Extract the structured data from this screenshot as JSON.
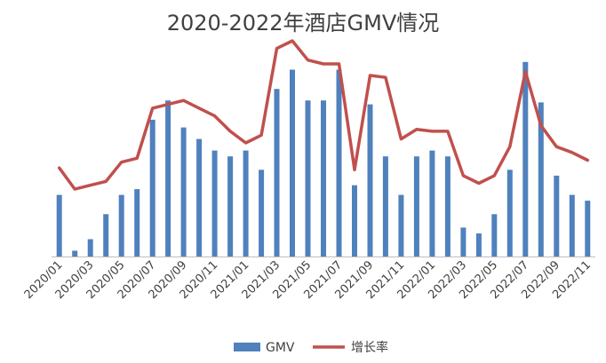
{
  "chart_data": {
    "type": "bar+line",
    "title": "2020-2022年酒店GMV情况",
    "xlabel": "",
    "ylabel": "",
    "categories": [
      "2020/01",
      "2020/02",
      "2020/03",
      "2020/04",
      "2020/05",
      "2020/06",
      "2020/07",
      "2020/08",
      "2020/09",
      "2020/10",
      "2020/11",
      "2020/12",
      "2021/01",
      "2021/02",
      "2021/03",
      "2021/04",
      "2021/05",
      "2021/06",
      "2021/07",
      "2021/08",
      "2021/09",
      "2021/10",
      "2021/11",
      "2021/12",
      "2022/01",
      "2022/02",
      "2022/03",
      "2022/04",
      "2022/05",
      "2022/06",
      "2022/07",
      "2022/08",
      "2022/09",
      "2022/10",
      "2022/11"
    ],
    "tick_labels": [
      "2020/01",
      "2020/03",
      "2020/05",
      "2020/07",
      "2020/09",
      "2020/11",
      "2021/01",
      "2021/03",
      "2021/05",
      "2021/07",
      "2021/09",
      "2021/11",
      "2022/01",
      "2022/03",
      "2022/05",
      "2022/07",
      "2022/09",
      "2022/11"
    ],
    "ylim": [
      0,
      100
    ],
    "series": [
      {
        "name": "GMV",
        "kind": "bar",
        "color": "#4f81bd",
        "values": [
          32,
          3,
          9,
          22,
          32,
          35,
          71,
          81,
          67,
          61,
          55,
          52,
          55,
          45,
          87,
          97,
          81,
          81,
          97,
          37,
          79,
          52,
          32,
          52,
          55,
          52,
          15,
          12,
          22,
          45,
          101,
          80,
          42,
          32,
          29
        ]
      },
      {
        "name": "增长率",
        "kind": "line",
        "color": "#c0504d",
        "values": [
          46,
          35,
          37,
          39,
          49,
          51,
          77,
          79,
          81,
          77,
          73,
          65,
          59,
          63,
          108,
          112,
          102,
          100,
          100,
          45,
          94,
          93,
          61,
          66,
          65,
          65,
          42,
          38,
          42,
          57,
          96,
          68,
          57,
          54,
          50
        ]
      }
    ],
    "legend": {
      "position": "bottom",
      "items": [
        "GMV",
        "增长率"
      ]
    }
  }
}
